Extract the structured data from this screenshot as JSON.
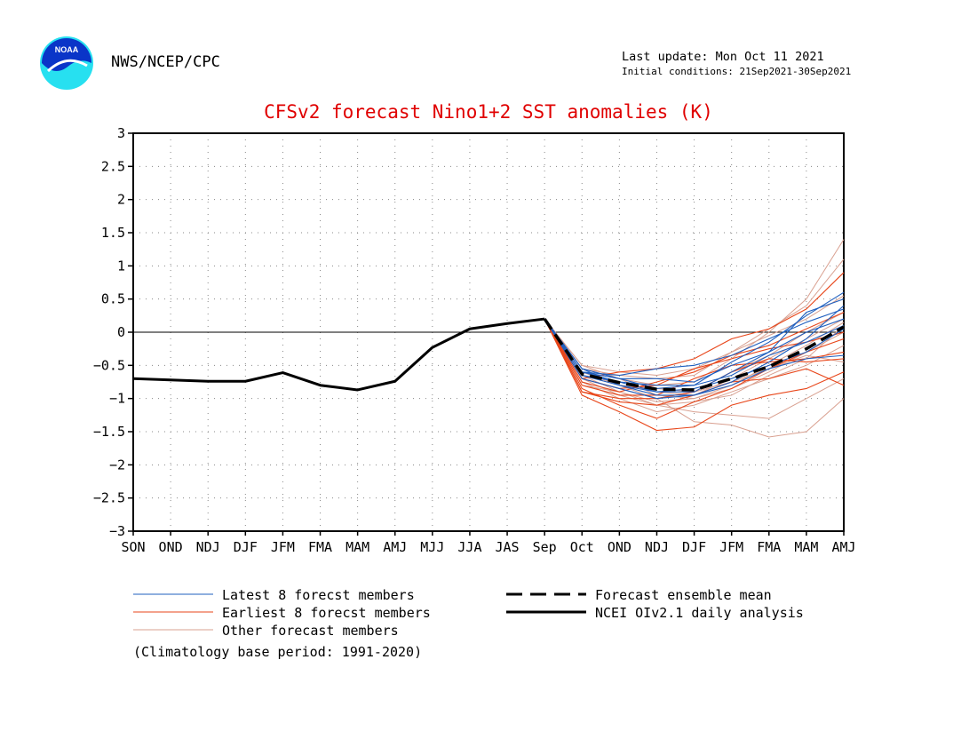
{
  "header": {
    "agency": "NWS/NCEP/CPC",
    "last_update": "Last update: Mon Oct 11 2021",
    "initial_conditions": "Initial conditions: 21Sep2021-30Sep2021",
    "logo_text": "NOAA"
  },
  "colors": {
    "title": "#e00000",
    "latest": "#1f5fbf",
    "earliest": "#e8461a",
    "other": "#d9a090",
    "analysis": "#000000",
    "ensemble_mean": "#000000"
  },
  "chart_data": {
    "type": "line",
    "title": "CFSv2 forecast Nino1+2 SST anomalies (K)",
    "categories": [
      "SON",
      "OND",
      "NDJ",
      "DJF",
      "JFM",
      "FMA",
      "MAM",
      "AMJ",
      "MJJ",
      "JJA",
      "JAS",
      "Sep",
      "Oct",
      "OND",
      "NDJ",
      "DJF",
      "JFM",
      "FMA",
      "MAM",
      "AMJ"
    ],
    "ylim": [
      -3,
      3
    ],
    "yticks": [
      3,
      2.5,
      2,
      1.5,
      1,
      0.5,
      0,
      -0.5,
      -1,
      -1.5,
      -2,
      -2.5,
      -3
    ],
    "ytick_labels": [
      "3",
      "2.5",
      "2",
      "1.5",
      "1",
      "0.5",
      "0",
      "-0.5",
      "-1",
      "-1.5",
      "-2",
      "-2.5",
      "-3"
    ],
    "grid": true,
    "analysis": {
      "name": "NCEI OIv2.1 daily analysis",
      "values": [
        -0.7,
        -0.72,
        -0.74,
        -0.74,
        -0.61,
        -0.8,
        -0.87,
        -0.74,
        -0.23,
        0.05,
        0.13,
        0.2
      ]
    },
    "ensemble_mean": {
      "name": "Forecast ensemble mean",
      "values": [
        0.2,
        -0.63,
        -0.76,
        -0.86,
        -0.87,
        -0.7,
        -0.52,
        -0.25,
        0.08
      ]
    },
    "latest_members": {
      "name": "Latest 8 forecst members",
      "series": [
        [
          0.2,
          -0.55,
          -0.7,
          -0.85,
          -0.8,
          -0.45,
          -0.15,
          0.25,
          0.6
        ],
        [
          0.2,
          -0.6,
          -0.65,
          -0.55,
          -0.5,
          -0.35,
          -0.1,
          0.15,
          0.35
        ],
        [
          0.2,
          -0.65,
          -0.75,
          -0.9,
          -0.9,
          -0.6,
          -0.3,
          0.0,
          0.2
        ],
        [
          0.2,
          -0.55,
          -0.8,
          -0.95,
          -0.95,
          -0.75,
          -0.45,
          -0.1,
          0.4
        ],
        [
          0.2,
          -0.7,
          -0.85,
          -1.0,
          -0.95,
          -0.8,
          -0.55,
          -0.4,
          -0.35
        ],
        [
          0.2,
          -0.6,
          -0.7,
          -0.7,
          -0.75,
          -0.5,
          -0.3,
          0.3,
          0.5
        ],
        [
          0.2,
          -0.65,
          -0.8,
          -0.9,
          -0.85,
          -0.7,
          -0.5,
          -0.3,
          0.05
        ],
        [
          0.2,
          -0.6,
          -0.75,
          -0.8,
          -0.8,
          -0.65,
          -0.35,
          -0.15,
          0.1
        ]
      ]
    },
    "earliest_members": {
      "name": "Earliest 8 forecst members",
      "series": [
        [
          0.2,
          -0.7,
          -0.6,
          -0.55,
          -0.4,
          -0.1,
          0.05,
          0.35,
          0.9
        ],
        [
          0.2,
          -0.9,
          -1.0,
          -1.0,
          -0.9,
          -0.6,
          -0.4,
          -0.45,
          -0.4
        ],
        [
          0.2,
          -0.95,
          -1.2,
          -1.48,
          -1.43,
          -1.1,
          -0.95,
          -0.85,
          -0.6
        ],
        [
          0.2,
          -0.85,
          -1.1,
          -1.3,
          -1.05,
          -0.85,
          -0.55,
          -0.3,
          -0.1
        ],
        [
          0.2,
          -0.75,
          -0.9,
          -0.75,
          -0.6,
          -0.35,
          -0.2,
          0.05,
          0.3
        ],
        [
          0.2,
          -0.8,
          -0.95,
          -0.95,
          -0.7,
          -0.5,
          -0.45,
          -0.4,
          -0.3
        ],
        [
          0.2,
          -0.9,
          -1.05,
          -1.1,
          -0.95,
          -0.75,
          -0.7,
          -0.55,
          -0.8
        ],
        [
          0.2,
          -0.7,
          -0.85,
          -0.8,
          -0.55,
          -0.4,
          -0.25,
          -0.15,
          0.0
        ]
      ]
    },
    "other_members": {
      "name": "Other forecast members",
      "series": [
        [
          0.2,
          -0.5,
          -0.7,
          -0.8,
          -0.75,
          -0.4,
          0.0,
          0.5,
          1.4
        ],
        [
          0.2,
          -0.65,
          -0.9,
          -1.1,
          -1.05,
          -0.95,
          -0.65,
          -0.4,
          0.1
        ],
        [
          0.2,
          -0.6,
          -0.8,
          -1.0,
          -1.35,
          -1.4,
          -1.58,
          -1.5,
          -1.0
        ],
        [
          0.2,
          -0.7,
          -0.95,
          -1.1,
          -1.2,
          -1.25,
          -1.3,
          -1.0,
          -0.7
        ],
        [
          0.2,
          -0.55,
          -0.65,
          -0.7,
          -0.65,
          -0.3,
          0.05,
          0.4,
          1.1
        ],
        [
          0.2,
          -0.75,
          -1.0,
          -1.2,
          -1.1,
          -0.9,
          -0.7,
          -0.5,
          -0.2
        ],
        [
          0.2,
          -0.6,
          -0.75,
          -0.9,
          -0.95,
          -0.7,
          -0.4,
          -0.1,
          0.2
        ],
        [
          0.2,
          -0.8,
          -0.9,
          -1.05,
          -1.0,
          -0.85,
          -0.6,
          -0.3,
          0.0
        ],
        [
          0.2,
          -0.5,
          -0.6,
          -0.65,
          -0.55,
          -0.3,
          -0.05,
          0.2,
          0.55
        ],
        [
          0.2,
          -0.7,
          -0.85,
          -1.0,
          -0.9,
          -0.75,
          -0.55,
          -0.35,
          -0.45
        ],
        [
          0.2,
          -0.65,
          -0.8,
          -0.85,
          -0.9,
          -0.6,
          -0.35,
          0.0,
          0.3
        ],
        [
          0.2,
          -0.55,
          -0.7,
          -0.95,
          -1.0,
          -0.8,
          -0.5,
          -0.2,
          0.15
        ]
      ]
    }
  },
  "legend": {
    "latest": "Latest 8 forecst members",
    "earliest": "Earliest 8 forecst members",
    "other": "Other forecast members",
    "mean": "Forecast ensemble mean",
    "analysis": "NCEI OIv2.1 daily analysis"
  },
  "footnote": "(Climatology base period: 1991-2020)"
}
